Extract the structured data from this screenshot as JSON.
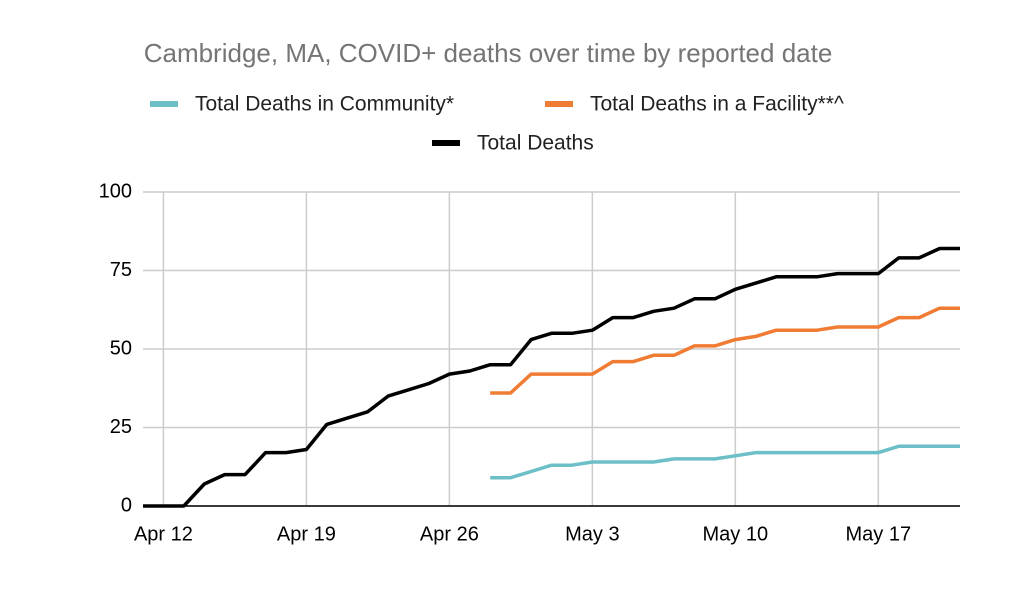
{
  "chart_data": {
    "type": "line",
    "title": "Cambridge, MA, COVID+ deaths over time by reported date",
    "categories": [
      null,
      "Apr 12",
      null,
      null,
      null,
      null,
      null,
      null,
      "Apr 19",
      null,
      null,
      null,
      null,
      null,
      null,
      "Apr 26",
      null,
      null,
      null,
      null,
      null,
      null,
      "May 3",
      null,
      null,
      null,
      null,
      null,
      null,
      "May 10",
      null,
      null,
      null,
      null,
      null,
      null,
      "May 17",
      null,
      null,
      null,
      null
    ],
    "series": [
      {
        "name": "Total Deaths in Community*",
        "color": "#6cbfc7",
        "values": [
          null,
          null,
          null,
          null,
          null,
          null,
          null,
          null,
          null,
          null,
          null,
          null,
          null,
          null,
          null,
          null,
          null,
          9,
          9,
          11,
          13,
          13,
          14,
          14,
          14,
          14,
          15,
          15,
          15,
          16,
          17,
          17,
          17,
          17,
          17,
          17,
          17,
          19,
          19,
          19,
          19
        ]
      },
      {
        "name": "Total Deaths in a Facility**^",
        "color": "#f07b32",
        "values": [
          null,
          null,
          null,
          null,
          null,
          null,
          null,
          null,
          null,
          null,
          null,
          null,
          null,
          null,
          null,
          null,
          null,
          36,
          36,
          42,
          42,
          42,
          42,
          46,
          46,
          48,
          48,
          51,
          51,
          53,
          54,
          56,
          56,
          56,
          57,
          57,
          57,
          60,
          60,
          63,
          63
        ]
      },
      {
        "name": "Total Deaths",
        "color": "#000000",
        "values": [
          0,
          0,
          0,
          7,
          10,
          10,
          17,
          17,
          18,
          26,
          28,
          30,
          35,
          37,
          39,
          42,
          43,
          45,
          45,
          53,
          55,
          55,
          56,
          60,
          60,
          62,
          63,
          66,
          66,
          69,
          71,
          73,
          73,
          73,
          74,
          74,
          74,
          79,
          79,
          82,
          82
        ]
      }
    ],
    "ylim": [
      0,
      100
    ],
    "yticks": [
      0,
      25,
      50,
      75,
      100
    ],
    "grid": true
  }
}
